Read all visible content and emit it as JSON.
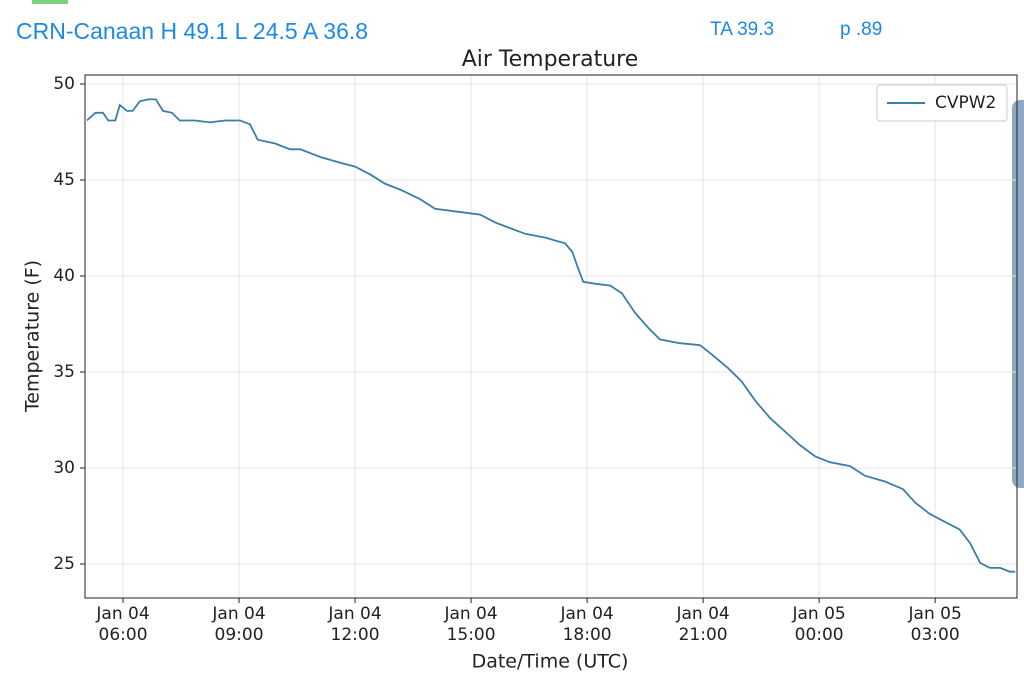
{
  "header": {
    "station": "CRN-Canaan H 49.1 L 24.5 A 36.8",
    "ta": "TA 39.3",
    "p": "p .89"
  },
  "chart_data": {
    "type": "line",
    "title": "Air Temperature",
    "xlabel": "Date/Time (UTC)",
    "ylabel": "Temperature (F)",
    "x": [
      "Jan 04 05:04",
      "Jan 04 05:17",
      "Jan 04 05:29",
      "Jan 04 05:37",
      "Jan 04 05:48",
      "Jan 04 05:55",
      "Jan 04 06:06",
      "Jan 04 06:15",
      "Jan 04 06:26",
      "Jan 04 06:39",
      "Jan 04 06:51",
      "Jan 04 07:02",
      "Jan 04 07:16",
      "Jan 04 07:28",
      "Jan 04 07:52",
      "Jan 04 08:15",
      "Jan 04 08:38",
      "Jan 04 09:02",
      "Jan 04 09:17",
      "Jan 04 09:29",
      "Jan 04 09:56",
      "Jan 04 10:19",
      "Jan 04 10:35",
      "Jan 04 11:06",
      "Jan 04 11:37",
      "Jan 04 12:00",
      "Jan 04 12:23",
      "Jan 04 12:47",
      "Jan 04 13:10",
      "Jan 04 13:41",
      "Jan 04 14:04",
      "Jan 04 14:27",
      "Jan 04 14:51",
      "Jan 04 15:14",
      "Jan 04 15:37",
      "Jan 04 16:00",
      "Jan 04 16:24",
      "Jan 04 16:55",
      "Jan 04 17:26",
      "Jan 04 17:37",
      "Jan 04 17:46",
      "Jan 04 17:54",
      "Jan 04 18:12",
      "Jan 04 18:36",
      "Jan 04 18:54",
      "Jan 04 19:14",
      "Jan 04 19:35",
      "Jan 04 19:53",
      "Jan 04 20:24",
      "Jan 04 20:55",
      "Jan 04 21:14",
      "Jan 04 21:39",
      "Jan 04 22:00",
      "Jan 04 22:21",
      "Jan 04 22:44",
      "Jan 04 23:07",
      "Jan 04 23:30",
      "Jan 04 23:54",
      "Jan 05 00:17",
      "Jan 05 00:48",
      "Jan 05 01:11",
      "Jan 05 01:42",
      "Jan 05 02:10",
      "Jan 05 02:29",
      "Jan 05 02:52",
      "Jan 05 03:15",
      "Jan 05 03:38",
      "Jan 05 03:54",
      "Jan 05 04:10",
      "Jan 05 04:25",
      "Jan 05 04:41",
      "Jan 05 04:56",
      "Jan 05 05:04"
    ],
    "series": [
      {
        "name": "CVPW2",
        "color": "#3a7fa8",
        "values": [
          48.1,
          48.5,
          48.5,
          48.1,
          48.1,
          48.9,
          48.6,
          48.6,
          49.1,
          49.2,
          49.2,
          48.6,
          48.5,
          48.1,
          48.1,
          48.0,
          48.1,
          48.1,
          47.9,
          47.1,
          46.9,
          46.6,
          46.6,
          46.2,
          45.9,
          45.7,
          45.3,
          44.8,
          44.5,
          44.0,
          43.5,
          43.4,
          43.3,
          43.2,
          42.8,
          42.5,
          42.2,
          42.0,
          41.7,
          41.25,
          40.4,
          39.7,
          39.6,
          39.5,
          39.1,
          38.1,
          37.3,
          36.7,
          36.5,
          36.4,
          35.9,
          35.2,
          34.5,
          33.5,
          32.6,
          31.9,
          31.2,
          30.6,
          30.3,
          30.1,
          29.6,
          29.3,
          28.9,
          28.2,
          27.6,
          27.2,
          26.8,
          26.1,
          25.05,
          24.8,
          24.8,
          24.6,
          24.6
        ]
      }
    ],
    "xlim": [
      "Jan 04 05:01",
      "Jan 05 05:07"
    ],
    "xticks": [
      "Jan 04\n06:00",
      "Jan 04\n09:00",
      "Jan 04\n12:00",
      "Jan 04\n15:00",
      "Jan 04\n18:00",
      "Jan 04\n21:00",
      "Jan 05\n00:00",
      "Jan 05\n03:00"
    ],
    "ylim": [
      23.23,
      50.47
    ],
    "yticks": [
      25,
      30,
      35,
      40,
      45,
      50
    ],
    "grid": true,
    "legend": "upper right"
  }
}
